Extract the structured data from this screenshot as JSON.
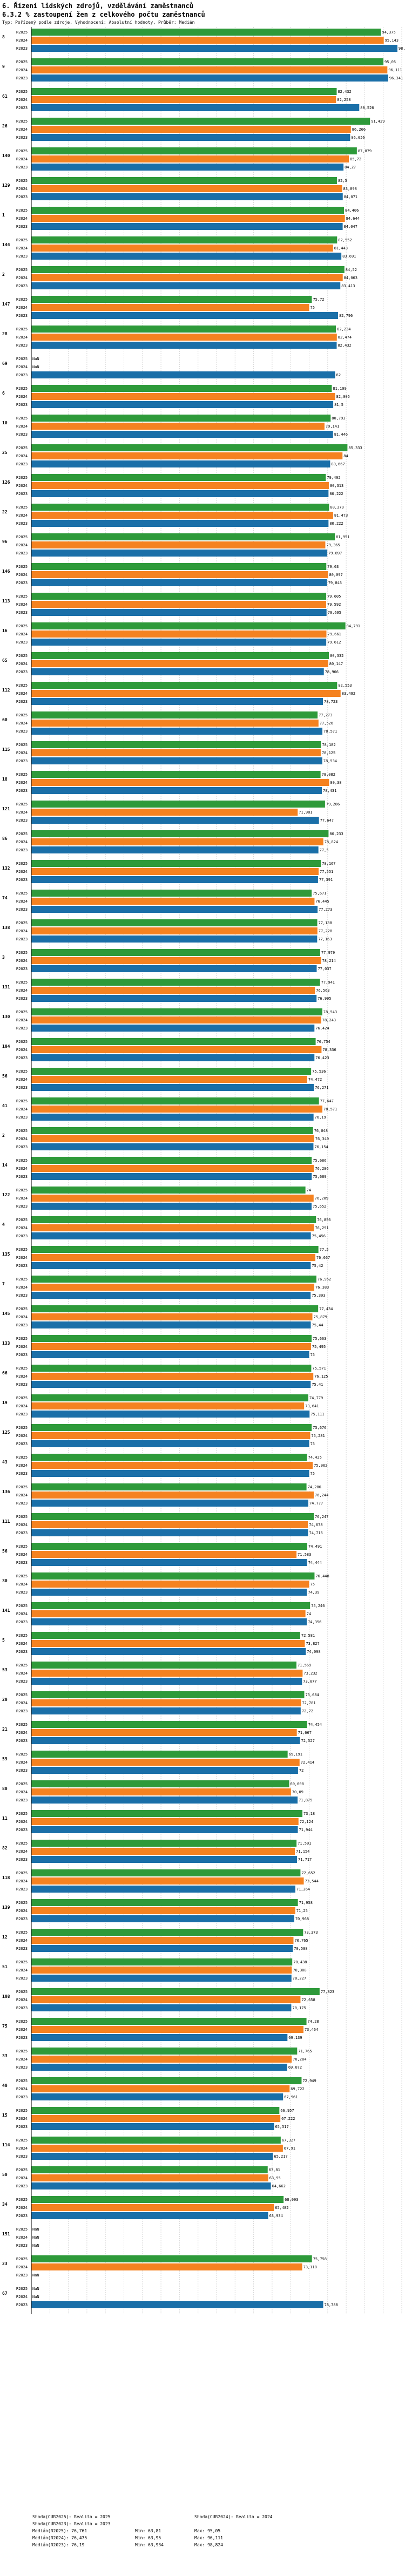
{
  "header": {
    "title_line1": "6. Řízení lidských zdrojů, vzdělávání zaměstnanců",
    "title_line2": "6.3.2 % zastoupení žen z celkového počtu zaměstnanců",
    "subtitle": "Typ: Pořízený podle zdroje, Vyhodnocení: Absolutní hodnoty, Průběr: Medián"
  },
  "colors": {
    "r2025": "#2e9a3a",
    "r2024": "#f58220",
    "r2023": "#1a6fa8"
  },
  "chart_data": {
    "type": "bar",
    "orientation": "horizontal",
    "title": "6.3.2 % zastoupení žen z celkového počtu zaměstnanců",
    "series_names": [
      "R2025",
      "R2024",
      "R2023"
    ],
    "xlim": [
      0,
      100
    ],
    "grid": true,
    "groups": [
      {
        "id": "8",
        "values": [
          94.375,
          95.143,
          98.824
        ]
      },
      {
        "id": "9",
        "values": [
          95.05,
          96.111,
          96.341
        ]
      },
      {
        "id": "61",
        "values": [
          82.432,
          82.258,
          88.526
        ]
      },
      {
        "id": "26",
        "values": [
          91.429,
          86.266,
          86.056
        ]
      },
      {
        "id": "140",
        "values": [
          87.879,
          85.72,
          84.27
        ]
      },
      {
        "id": "129",
        "values": [
          82.5,
          83.898,
          84.071
        ]
      },
      {
        "id": "1",
        "values": [
          84.406,
          84.644,
          84.047
        ]
      },
      {
        "id": "144",
        "values": [
          82.552,
          81.443,
          83.691
        ]
      },
      {
        "id": "2",
        "values": [
          84.52,
          84.063,
          83.413
        ]
      },
      {
        "id": "147",
        "values": [
          75.72,
          75.0,
          82.796
        ]
      },
      {
        "id": "28",
        "values": [
          82.234,
          82.474,
          82.432
        ]
      },
      {
        "id": "69",
        "values": [
          null,
          null,
          82.0
        ]
      },
      {
        "id": "6",
        "values": [
          81.109,
          82.005,
          81.5
        ]
      },
      {
        "id": "10",
        "values": [
          80.793,
          79.141,
          81.446
        ]
      },
      {
        "id": "25",
        "values": [
          85.333,
          84.0,
          80.667
        ]
      },
      {
        "id": "126",
        "values": [
          79.492,
          80.313,
          80.222
        ]
      },
      {
        "id": "22",
        "values": [
          80.379,
          81.473,
          80.222
        ]
      },
      {
        "id": "96",
        "values": [
          81.951,
          79.365,
          79.897
        ]
      },
      {
        "id": "146",
        "values": [
          79.63,
          80.097,
          79.843
        ]
      },
      {
        "id": "113",
        "values": [
          79.605,
          79.592,
          79.695
        ]
      },
      {
        "id": "16",
        "values": [
          84.791,
          79.661,
          79.612
        ]
      },
      {
        "id": "65",
        "values": [
          80.332,
          80.147,
          78.966
        ]
      },
      {
        "id": "112",
        "values": [
          82.553,
          83.492,
          78.723
        ]
      },
      {
        "id": "60",
        "values": [
          77.273,
          77.526,
          78.571
        ]
      },
      {
        "id": "115",
        "values": [
          78.182,
          78.125,
          78.534
        ]
      },
      {
        "id": "18",
        "values": [
          78.082,
          80.38,
          78.431
        ]
      },
      {
        "id": "121",
        "values": [
          79.286,
          71.901,
          77.647
        ]
      },
      {
        "id": "86",
        "values": [
          80.233,
          78.824,
          77.5
        ]
      },
      {
        "id": "132",
        "values": [
          78.167,
          77.551,
          77.391
        ]
      },
      {
        "id": "74",
        "values": [
          75.671,
          76.445,
          77.273
        ]
      },
      {
        "id": "138",
        "values": [
          77.188,
          77.228,
          77.163
        ]
      },
      {
        "id": "3",
        "values": [
          77.979,
          78.214,
          77.037
        ]
      },
      {
        "id": "131",
        "values": [
          77.941,
          76.563,
          76.995
        ]
      },
      {
        "id": "130",
        "values": [
          78.543,
          78.243,
          76.424
        ]
      },
      {
        "id": "104",
        "values": [
          76.754,
          78.336,
          76.423
        ]
      },
      {
        "id": "56",
        "values": [
          75.536,
          74.472,
          76.271
        ]
      },
      {
        "id": "41",
        "values": [
          77.647,
          78.571,
          76.19
        ]
      },
      {
        "id": "2",
        "values": [
          76.048,
          76.349,
          76.154
        ]
      },
      {
        "id": "14",
        "values": [
          75.686,
          76.286,
          75.689
        ]
      },
      {
        "id": "122",
        "values": [
          74.0,
          76.209,
          75.652
        ]
      },
      {
        "id": "4",
        "values": [
          76.856,
          76.291,
          75.456
        ]
      },
      {
        "id": "135",
        "values": [
          77.5,
          76.667,
          75.42
        ]
      },
      {
        "id": "7",
        "values": [
          76.952,
          76.383,
          75.393
        ]
      },
      {
        "id": "145",
        "values": [
          77.434,
          75.879,
          75.44
        ]
      },
      {
        "id": "133",
        "values": [
          75.663,
          75.495,
          75.0
        ]
      },
      {
        "id": "66",
        "values": [
          75.571,
          76.125,
          75.41
        ]
      },
      {
        "id": "19",
        "values": [
          74.779,
          73.641,
          75.111
        ]
      },
      {
        "id": "125",
        "values": [
          75.676,
          75.281,
          75.0
        ]
      },
      {
        "id": "43",
        "values": [
          74.425,
          75.962,
          75.0
        ]
      },
      {
        "id": "136",
        "values": [
          74.286,
          76.244,
          74.777
        ]
      },
      {
        "id": "111",
        "values": [
          76.247,
          74.678,
          74.715
        ]
      },
      {
        "id": "56",
        "values": [
          74.491,
          71.583,
          74.444
        ]
      },
      {
        "id": "30",
        "values": [
          76.448,
          75.0,
          74.39
        ]
      },
      {
        "id": "141",
        "values": [
          75.246,
          74.0,
          74.356
        ]
      },
      {
        "id": "5",
        "values": [
          72.581,
          73.827,
          74.098
        ]
      },
      {
        "id": "53",
        "values": [
          71.569,
          73.232,
          73.077
        ]
      },
      {
        "id": "20",
        "values": [
          73.684,
          72.781,
          72.72
        ]
      },
      {
        "id": "21",
        "values": [
          74.454,
          71.667,
          72.527
        ]
      },
      {
        "id": "59",
        "values": [
          69.191,
          72.414,
          72.0
        ]
      },
      {
        "id": "80",
        "values": [
          69.608,
          70.09,
          71.875
        ]
      },
      {
        "id": "11",
        "values": [
          73.18,
          72.124,
          71.944
        ]
      },
      {
        "id": "82",
        "values": [
          71.591,
          71.154,
          71.717
        ]
      },
      {
        "id": "118",
        "values": [
          72.652,
          73.544,
          71.264
        ]
      },
      {
        "id": "139",
        "values": [
          71.958,
          71.25,
          70.968
        ]
      },
      {
        "id": "12",
        "values": [
          73.373,
          70.765,
          70.588
        ]
      },
      {
        "id": "51",
        "values": [
          70.438,
          70.308,
          70.227
        ]
      },
      {
        "id": "108",
        "values": [
          77.823,
          72.658,
          70.175
        ]
      },
      {
        "id": "75",
        "values": [
          74.28,
          73.464,
          69.139
        ]
      },
      {
        "id": "33",
        "values": [
          71.765,
          70.284,
          69.072
        ]
      },
      {
        "id": "40",
        "values": [
          72.949,
          69.722,
          67.961
        ]
      },
      {
        "id": "15",
        "values": [
          66.957,
          67.222,
          65.517
        ]
      },
      {
        "id": "114",
        "values": [
          67.327,
          67.91,
          65.217
        ]
      },
      {
        "id": "50",
        "values": [
          63.81,
          63.95,
          64.662
        ]
      },
      {
        "id": "34",
        "values": [
          68.093,
          65.482,
          63.934
        ]
      },
      {
        "id": "151",
        "values": [
          null,
          null,
          null
        ]
      },
      {
        "id": "23",
        "values": [
          75.758,
          73.118,
          null
        ]
      },
      {
        "id": "67",
        "values": [
          null,
          null,
          78.788
        ]
      }
    ]
  },
  "legend": {
    "rows": [
      {
        "left": "Shoda(CUR2025): Realita = 2025",
        "mid": "",
        "right": "Shoda(CUR2024): Realita = 2024"
      },
      {
        "left": "Shoda(CUR2023): Realita = 2023",
        "mid": "",
        "right": ""
      },
      {
        "left": "Medián(R2025): 76,761",
        "mid": "Min: 63,81",
        "right": "Max: 95,05"
      },
      {
        "left": "Medián(R2024): 76,475",
        "mid": "Min: 63,95",
        "right": "Max: 96,111"
      },
      {
        "left": "Medián(R2023): 76,19",
        "mid": "Min: 63,934",
        "right": "Max: 98,824"
      }
    ]
  }
}
